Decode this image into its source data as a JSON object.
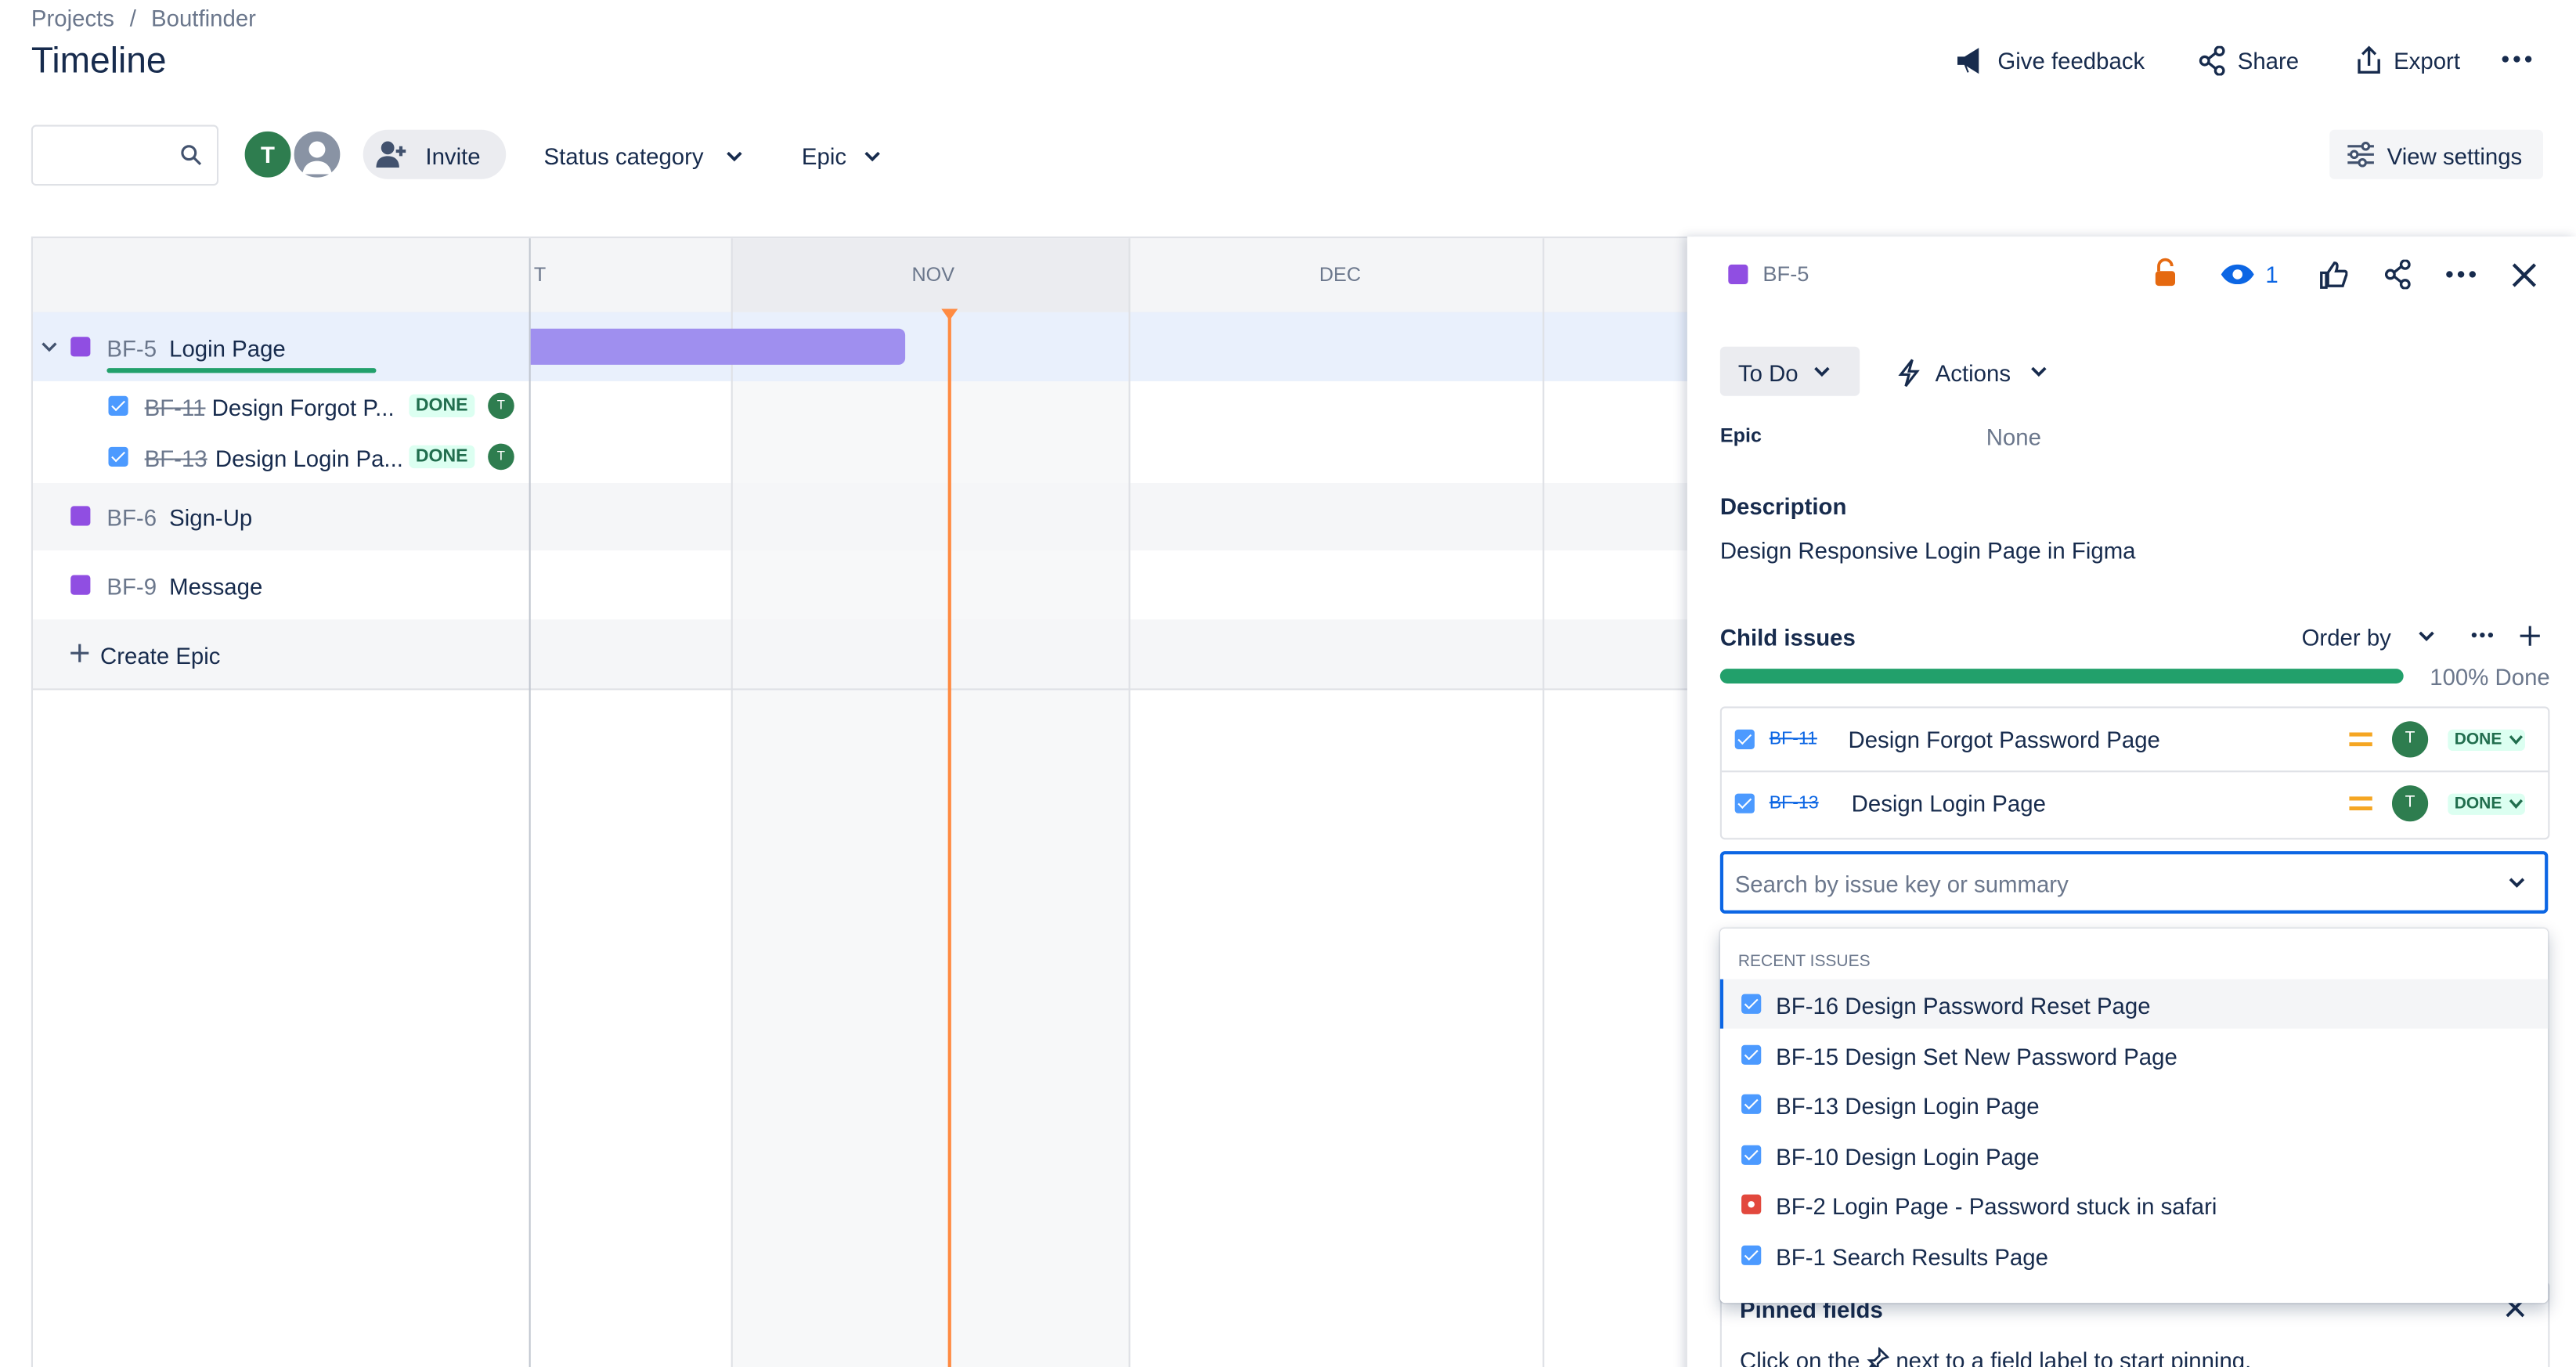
{
  "breadcrumb": [
    "Projects",
    "Boutfinder"
  ],
  "header": {
    "title": "Timeline",
    "actions": [
      "Give feedback",
      "Share",
      "Export"
    ]
  },
  "toolbar": {
    "avatar": "T",
    "invite": "Invite",
    "filters": [
      "Status category",
      "Epic"
    ],
    "view_settings": "View settings"
  },
  "timeline": {
    "months": [
      "T",
      "NOV",
      "DEC"
    ],
    "epics": [
      {
        "key": "BF-5",
        "title": "Login Page",
        "children": [
          {
            "key": "BF-11",
            "title": "Design Forgot P...",
            "status": "DONE",
            "assignee": "T"
          },
          {
            "key": "BF-13",
            "title": "Design Login Pa...",
            "status": "DONE",
            "assignee": "T"
          }
        ]
      },
      {
        "key": "BF-6",
        "title": "Sign-Up"
      },
      {
        "key": "BF-9",
        "title": "Message"
      }
    ],
    "create": "Create Epic"
  },
  "panel": {
    "key": "BF-5",
    "watchers": "1",
    "status": "To Do",
    "actions": "Actions",
    "epic_label": "Epic",
    "epic_value": "None",
    "description_label": "Description",
    "description": "Design Responsive Login Page in Figma",
    "child_label": "Child issues",
    "order_by": "Order by",
    "progress": "100% Done",
    "children": [
      {
        "key": "BF-11",
        "title": "Design Forgot Password Page",
        "assignee": "T",
        "status": "DONE"
      },
      {
        "key": "BF-13",
        "title": "Design Login Page",
        "assignee": "T",
        "status": "DONE"
      }
    ],
    "search_placeholder": "Search by issue key or summary",
    "recent_label": "RECENT ISSUES",
    "recent": [
      "BF-16 Design Password Reset Page",
      "BF-15 Design Set New Password Page",
      "BF-13 Design Login Page",
      "BF-10 Design Login Page",
      "BF-2 Login Page - Password stuck in safari",
      "BF-1 Search Results Page"
    ],
    "pinned_label": "Pinned fields",
    "pinned_hint": [
      "Click on the",
      "next to a field label to start pinning."
    ]
  }
}
